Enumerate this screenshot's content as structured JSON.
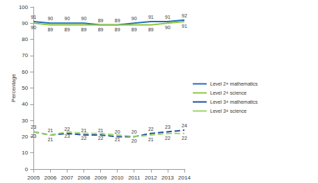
{
  "chart_data": {
    "type": "line",
    "categories": [
      "2005",
      "2006",
      "2007",
      "2008",
      "2009",
      "2010",
      "2011",
      "2012",
      "2013",
      "2014"
    ],
    "y_label": "Percentage",
    "ylim": [
      0,
      100
    ],
    "yticks": [
      0,
      10,
      20,
      30,
      40,
      50,
      60,
      70,
      80,
      90,
      100
    ],
    "grid": false,
    "legend": "right",
    "data_labels": true,
    "series": [
      {
        "name": "Level 2+ mathematics",
        "color": "#1f6fb4",
        "line_style": "solid",
        "values": [
          91,
          90,
          90,
          90,
          89,
          89,
          90,
          91,
          91,
          92
        ]
      },
      {
        "name": "Level 2+ science",
        "color": "#8dc63f",
        "line_style": "solid",
        "values": [
          90,
          89,
          89,
          89,
          89,
          89,
          89,
          89,
          90,
          91
        ]
      },
      {
        "name": "Level 3+ mathematics",
        "color": "#1f4e9a",
        "line_style": "dashed",
        "values": [
          23,
          21,
          22,
          21,
          21,
          20,
          20,
          22,
          23,
          24
        ]
      },
      {
        "name": "Level 3+ science",
        "color": "#9bd46a",
        "line_style": "dashed",
        "values": [
          23,
          21,
          23,
          22,
          22,
          21,
          20,
          21,
          22,
          22
        ]
      }
    ]
  }
}
